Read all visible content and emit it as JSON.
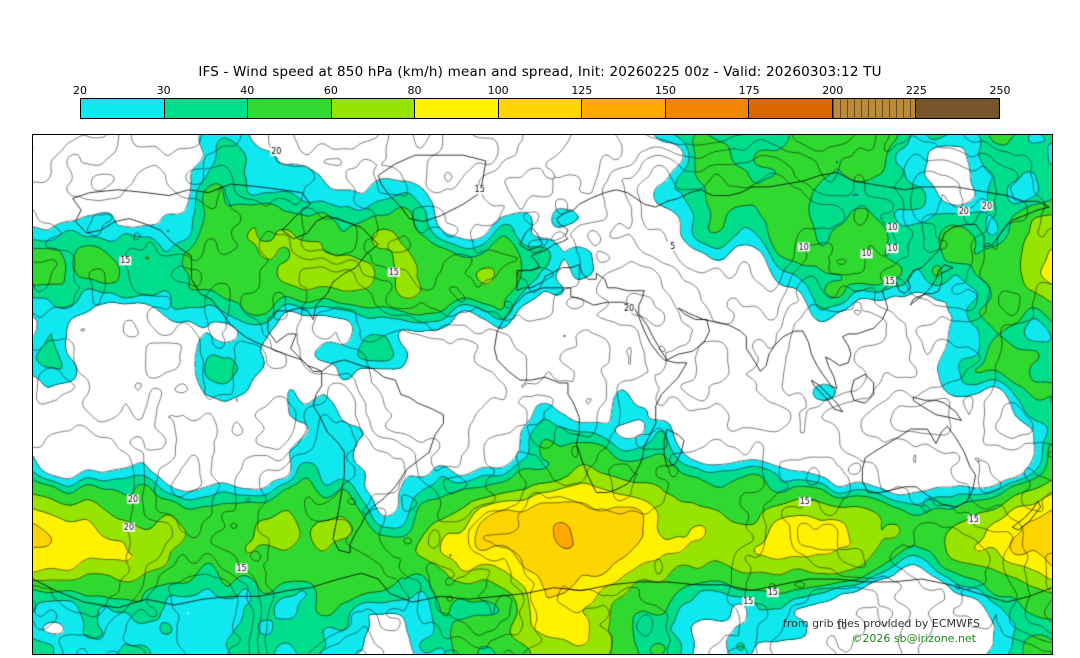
{
  "title": "IFS - Wind speed at 850 hPa (km/h) mean and spread, Init: 20260225 00z - Valid: 20260303:12 TU",
  "legend": {
    "unit": "km/h",
    "ticks": [
      "20",
      "30",
      "40",
      "60",
      "80",
      "100",
      "125",
      "150",
      "175",
      "200",
      "225",
      "250"
    ],
    "colors": [
      "#0FE8EE",
      "#00DE8C",
      "#30D930",
      "#97E400",
      "#FFF200",
      "#FFD500",
      "#FFA800",
      "#F28500",
      "#D96800",
      "#BB8A3A",
      "#77552A"
    ],
    "hatched_index": 9
  },
  "map": {
    "below_min_color": "#FFFFFF",
    "contour_color": "#000000",
    "mean_levels": [
      20,
      30,
      40,
      60,
      80,
      100,
      125
    ],
    "spread_levels": [
      5,
      10,
      15,
      20
    ],
    "credits": [
      "from grib files provided by ECMWFS",
      "©2026 sb@irizone.net"
    ],
    "credit_colors": [
      "#333333",
      "#1D8A1D"
    ]
  }
}
